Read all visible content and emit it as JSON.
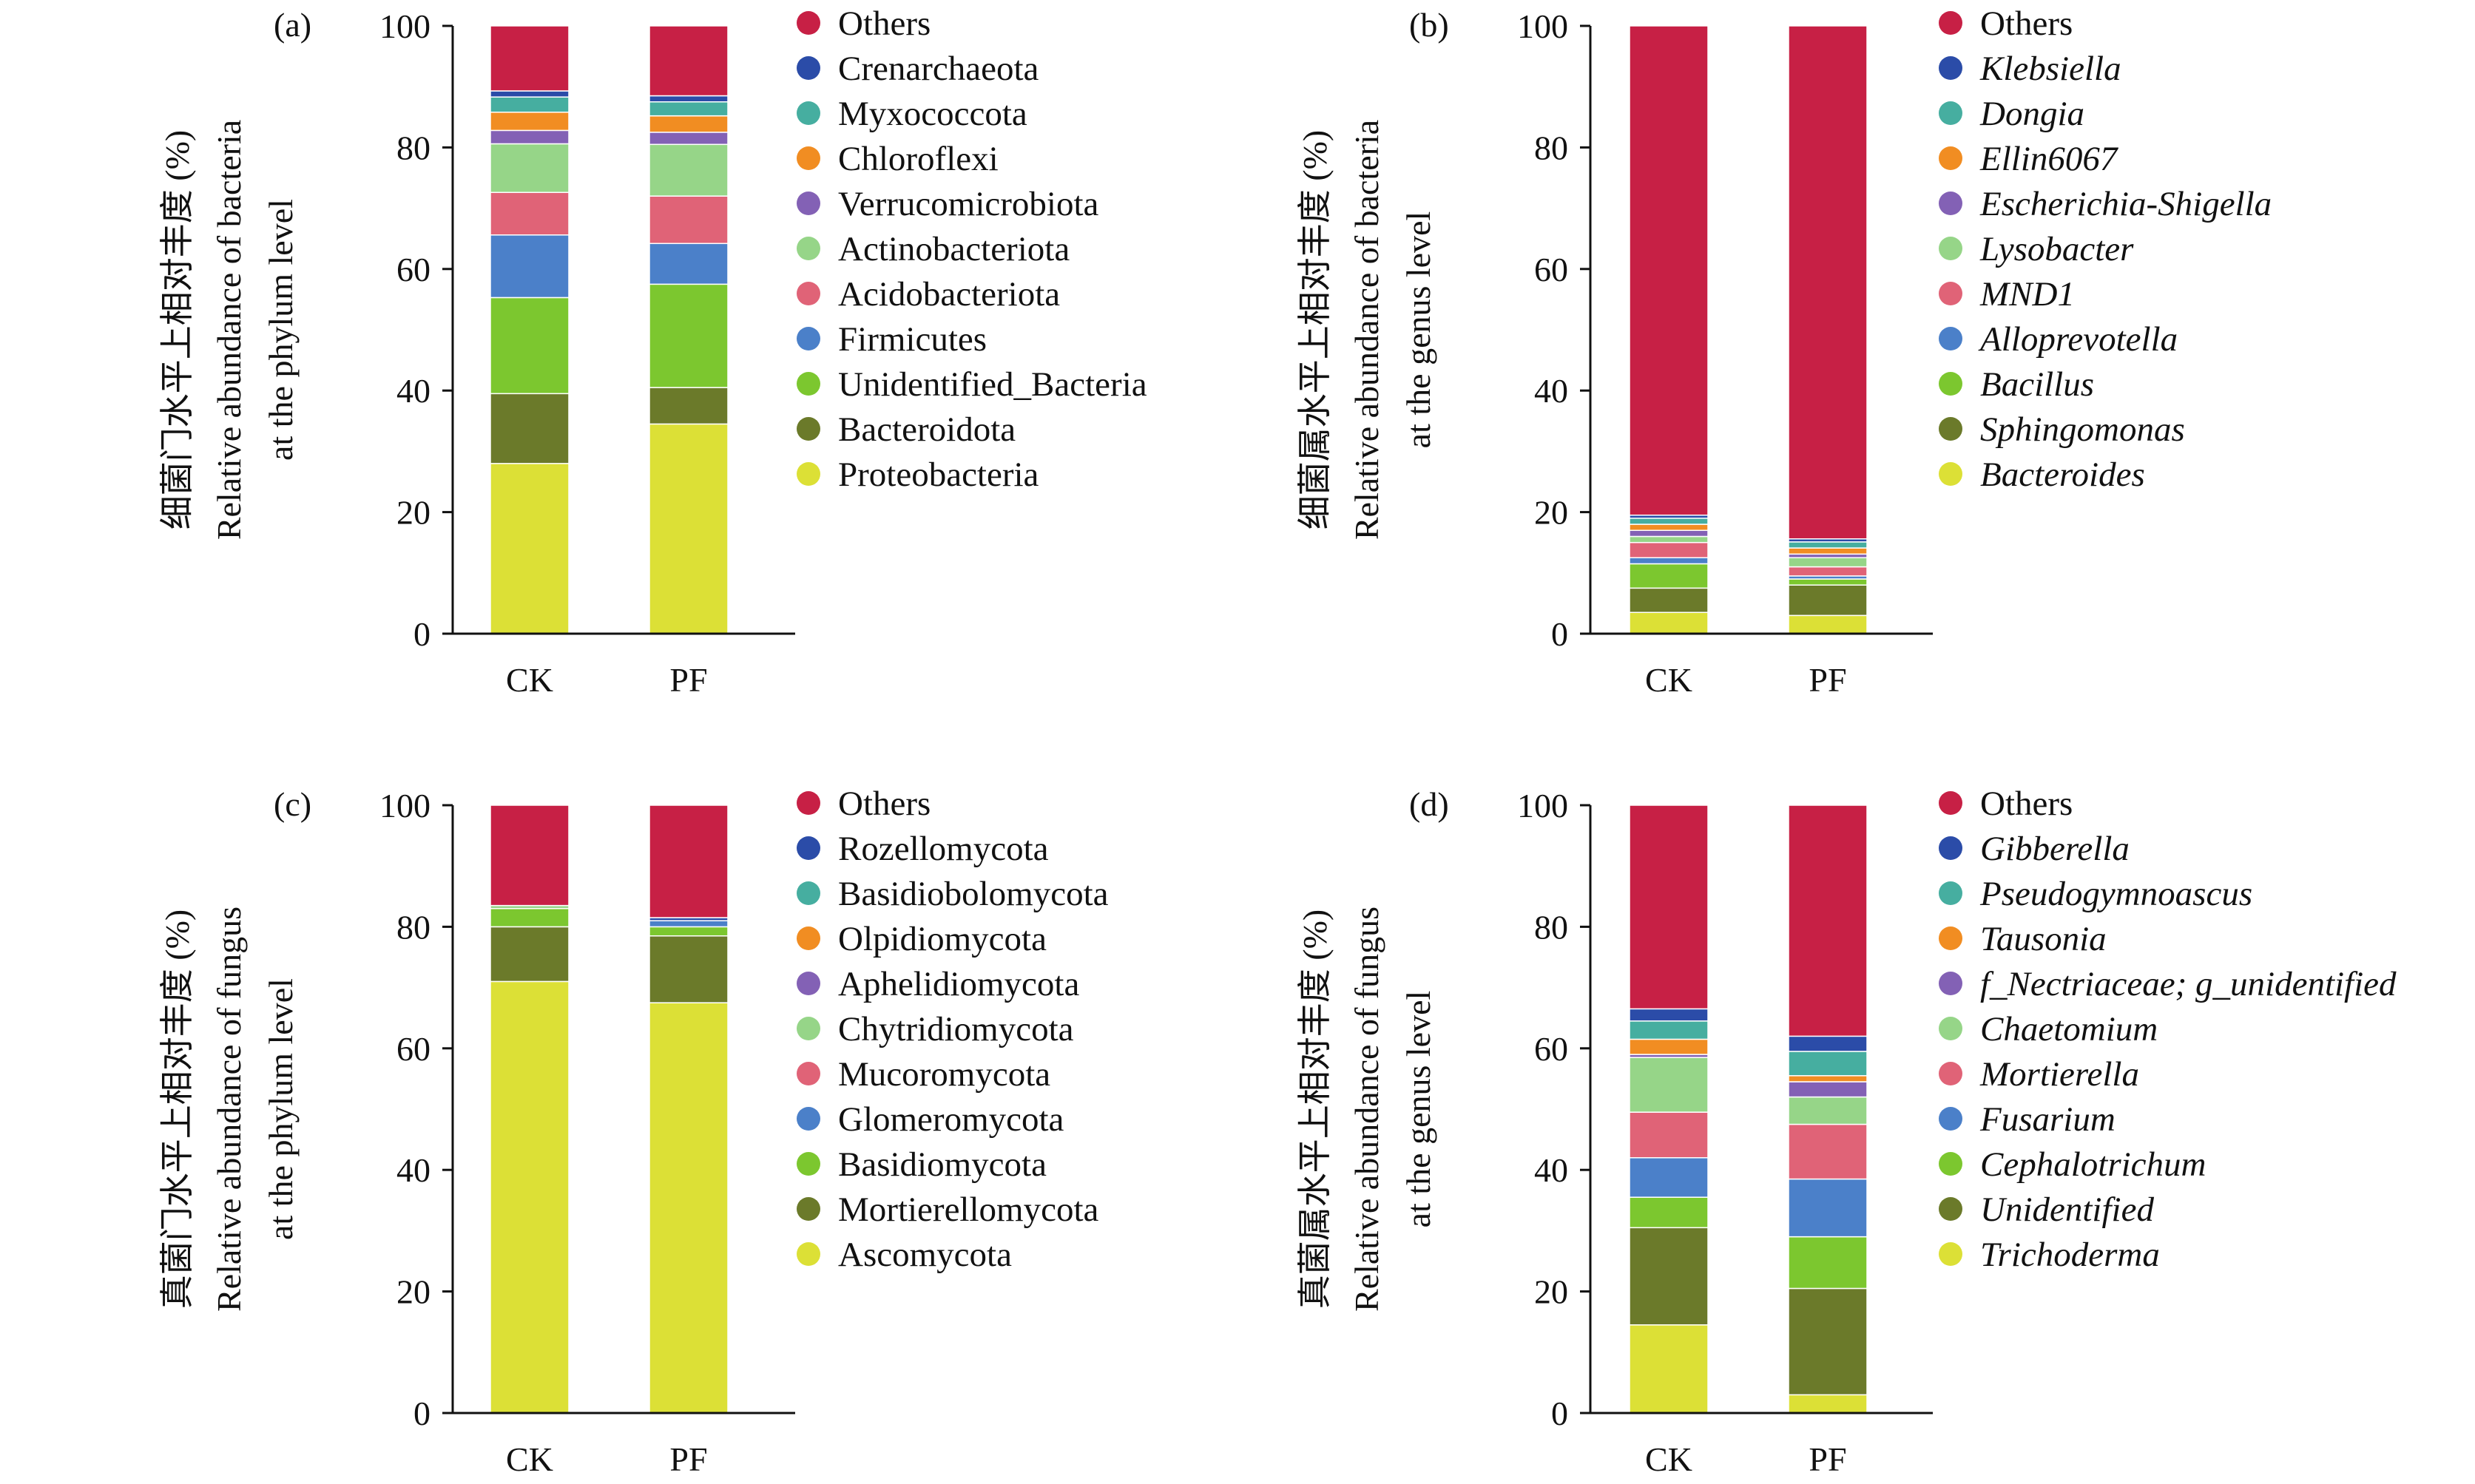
{
  "colors": [
    "#DCE036",
    "#6B7A2A",
    "#7CC72F",
    "#4B80C9",
    "#E06377",
    "#96D588",
    "#8361B5",
    "#F18D22",
    "#46AEA0",
    "#2B4CA8",
    "#C72045"
  ],
  "chart_data": [
    {
      "type": "bar",
      "stacked": true,
      "panel_label": "(a)",
      "ylabel": [
        "细菌门水平上相对丰度 (%)",
        "Relative abundance of bacteria",
        "at the phylum level"
      ],
      "categories": [
        "CK",
        "PF"
      ],
      "ylim": [
        0,
        100
      ],
      "yticks": [
        0,
        20,
        40,
        60,
        80,
        100
      ],
      "italic_legend": false,
      "legend_position": "right",
      "series": [
        {
          "name": "Proteobacteria",
          "values": [
            28.0,
            34.5
          ]
        },
        {
          "name": "Bacteroidota",
          "values": [
            11.5,
            6.0
          ]
        },
        {
          "name": "Unidentified_Bacteria",
          "values": [
            15.8,
            17.0
          ]
        },
        {
          "name": "Firmicutes",
          "values": [
            10.3,
            6.7
          ]
        },
        {
          "name": "Acidobacteriota",
          "values": [
            7.0,
            7.8
          ]
        },
        {
          "name": "Actinobacteriota",
          "values": [
            8.0,
            8.5
          ]
        },
        {
          "name": "Verrucomicrobiota",
          "values": [
            2.2,
            2.0
          ]
        },
        {
          "name": "Chloroflexi",
          "values": [
            3.0,
            2.7
          ]
        },
        {
          "name": "Myxococcota",
          "values": [
            2.5,
            2.3
          ]
        },
        {
          "name": "Crenarchaeota",
          "values": [
            1.0,
            1.0
          ]
        },
        {
          "name": "Others",
          "values": [
            10.7,
            11.5
          ]
        }
      ]
    },
    {
      "type": "bar",
      "stacked": true,
      "panel_label": "(b)",
      "ylabel": [
        "细菌属水平上相对丰度 (%)",
        "Relative abundance of bacteria",
        "at the genus level"
      ],
      "categories": [
        "CK",
        "PF"
      ],
      "ylim": [
        0,
        100
      ],
      "yticks": [
        0,
        20,
        40,
        60,
        80,
        100
      ],
      "italic_legend": true,
      "legend_position": "right",
      "series": [
        {
          "name": "Bacteroides",
          "values": [
            3.5,
            3.0
          ]
        },
        {
          "name": "Sphingomonas",
          "values": [
            4.0,
            5.0
          ]
        },
        {
          "name": "Bacillus",
          "values": [
            4.0,
            1.0
          ]
        },
        {
          "name": "Alloprevotella",
          "values": [
            1.0,
            0.5
          ]
        },
        {
          "name": "MND1",
          "values": [
            2.5,
            1.5
          ]
        },
        {
          "name": "Lysobacter",
          "values": [
            1.0,
            1.5
          ]
        },
        {
          "name": "Escherichia-Shigella",
          "values": [
            1.0,
            0.6
          ]
        },
        {
          "name": "Ellin6067",
          "values": [
            1.0,
            1.0
          ]
        },
        {
          "name": "Dongia",
          "values": [
            1.0,
            1.0
          ]
        },
        {
          "name": "Klebsiella",
          "values": [
            0.5,
            0.5
          ]
        },
        {
          "name": "Others",
          "values": [
            80.5,
            84.4
          ]
        }
      ]
    },
    {
      "type": "bar",
      "stacked": true,
      "panel_label": "(c)",
      "ylabel": [
        "真菌门水平上相对丰度 (%)",
        "Relative abundance of fungus",
        "at the phylum level"
      ],
      "categories": [
        "CK",
        "PF"
      ],
      "ylim": [
        0,
        100
      ],
      "yticks": [
        0,
        20,
        40,
        60,
        80,
        100
      ],
      "italic_legend": false,
      "legend_position": "right",
      "series": [
        {
          "name": "Ascomycota",
          "values": [
            71.0,
            67.5
          ]
        },
        {
          "name": "Mortierellomycota",
          "values": [
            9.0,
            11.0
          ]
        },
        {
          "name": "Basidiomycota",
          "values": [
            3.0,
            1.5
          ]
        },
        {
          "name": "Glomeromycota",
          "values": [
            0.0,
            1.0
          ]
        },
        {
          "name": "Mucoromycota",
          "values": [
            0.0,
            0.0
          ]
        },
        {
          "name": "Chytridiomycota",
          "values": [
            0.5,
            0.0
          ]
        },
        {
          "name": "Aphelidiomycota",
          "values": [
            0.0,
            0.0
          ]
        },
        {
          "name": "Olpidiomycota",
          "values": [
            0.0,
            0.0
          ]
        },
        {
          "name": "Basidiobolomycota",
          "values": [
            0.0,
            0.0
          ]
        },
        {
          "name": "Rozellomycota",
          "values": [
            0.0,
            0.5
          ]
        },
        {
          "name": "Others",
          "values": [
            16.5,
            18.5
          ]
        }
      ]
    },
    {
      "type": "bar",
      "stacked": true,
      "panel_label": "(d)",
      "ylabel": [
        "真菌属水平上相对丰度 (%)",
        "Relative abundance of fungus",
        "at the genus level"
      ],
      "categories": [
        "CK",
        "PF"
      ],
      "ylim": [
        0,
        100
      ],
      "yticks": [
        0,
        20,
        40,
        60,
        80,
        100
      ],
      "italic_legend": true,
      "legend_position": "right",
      "series": [
        {
          "name": "Trichoderma",
          "values": [
            14.5,
            3.0
          ]
        },
        {
          "name": "Unidentified",
          "values": [
            16.0,
            17.5
          ]
        },
        {
          "name": "Cephalotrichum",
          "values": [
            5.0,
            8.5
          ]
        },
        {
          "name": "Fusarium",
          "values": [
            6.5,
            9.5
          ]
        },
        {
          "name": "Mortierella",
          "values": [
            7.5,
            9.0
          ]
        },
        {
          "name": "Chaetomium",
          "values": [
            9.0,
            4.5
          ]
        },
        {
          "name": "f_Nectriaceae; g_unidentified",
          "values": [
            0.5,
            2.5
          ]
        },
        {
          "name": "Tausonia",
          "values": [
            2.5,
            1.0
          ]
        },
        {
          "name": "Pseudogymnoascus",
          "values": [
            3.0,
            4.0
          ]
        },
        {
          "name": "Gibberella",
          "values": [
            2.0,
            2.5
          ]
        },
        {
          "name": "Others",
          "values": [
            33.5,
            38.0
          ]
        }
      ]
    }
  ]
}
